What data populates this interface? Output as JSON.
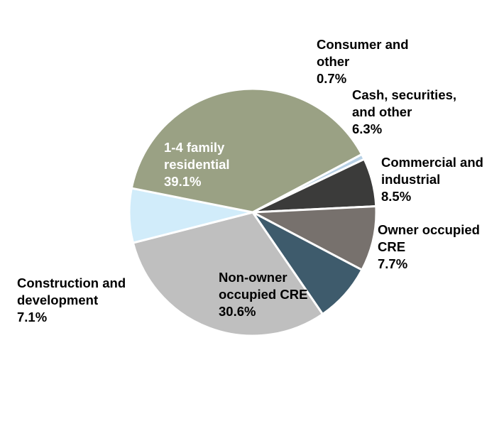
{
  "chart_data": {
    "type": "pie",
    "title": "",
    "slices": [
      {
        "label_lines": [
          "Consumer and",
          "other"
        ],
        "value_label": "0.7%",
        "value": 0.7,
        "color": "#b8d1e6",
        "label_color": "#000000"
      },
      {
        "label_lines": [
          "Cash, securities,",
          "and other"
        ],
        "value_label": "6.3%",
        "value": 6.3,
        "color": "#3b3b3a",
        "label_color": "#000000"
      },
      {
        "label_lines": [
          "Commercial and",
          "industrial"
        ],
        "value_label": "8.5%",
        "value": 8.5,
        "color": "#77716d",
        "label_color": "#000000"
      },
      {
        "label_lines": [
          "Owner occupied",
          "CRE"
        ],
        "value_label": "7.7%",
        "value": 7.7,
        "color": "#3e5b6c",
        "label_color": "#000000"
      },
      {
        "label_lines": [
          "Non-owner",
          "occupied CRE"
        ],
        "value_label": "30.6%",
        "value": 30.6,
        "color": "#bfbfbf",
        "label_color": "#000000"
      },
      {
        "label_lines": [
          "Construction and",
          "development"
        ],
        "value_label": "7.1%",
        "value": 7.1,
        "color": "#d1ecfa",
        "label_color": "#000000"
      },
      {
        "label_lines": [
          "1-4 family",
          "residential"
        ],
        "value_label": "39.1%",
        "value": 39.1,
        "color": "#9aa184",
        "label_color": "#ffffff"
      }
    ],
    "start_angle_deg": 62,
    "direction": "clockwise",
    "legend": "none"
  }
}
